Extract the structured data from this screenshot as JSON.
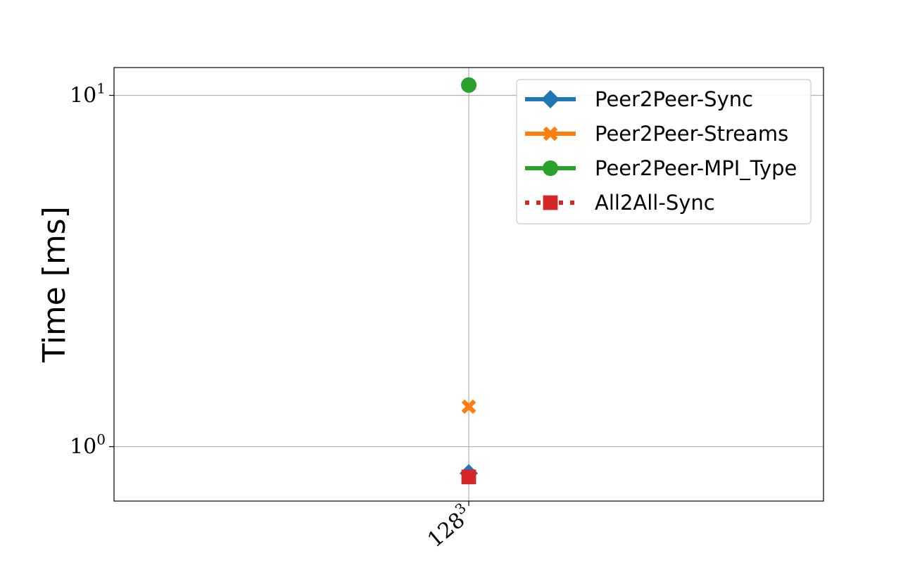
{
  "chart_data": {
    "type": "scatter",
    "title": "",
    "xlabel": "",
    "ylabel": "Time [ms]",
    "yscale": "log",
    "ylim": [
      0.7,
      12
    ],
    "categories": [
      "128"
    ],
    "category_exponent": "3",
    "y_ticks": [
      {
        "value": 1,
        "base": "10",
        "exp": "0"
      },
      {
        "value": 10,
        "base": "10",
        "exp": "1"
      }
    ],
    "grid": true,
    "legend_position": "upper right",
    "series": [
      {
        "name": "Peer2Peer-Sync",
        "color": "#1f77b4",
        "marker": "diamond",
        "line": "solid",
        "values": [
          0.84
        ]
      },
      {
        "name": "Peer2Peer-Streams",
        "color": "#ff7f0e",
        "marker": "x",
        "line": "solid",
        "values": [
          1.3
        ]
      },
      {
        "name": "Peer2Peer-MPI_Type",
        "color": "#2ca02c",
        "marker": "circle",
        "line": "solid",
        "values": [
          10.7
        ]
      },
      {
        "name": "All2All-Sync",
        "color": "#d62728",
        "marker": "square",
        "line": "dotted",
        "values": [
          0.82
        ]
      }
    ]
  }
}
